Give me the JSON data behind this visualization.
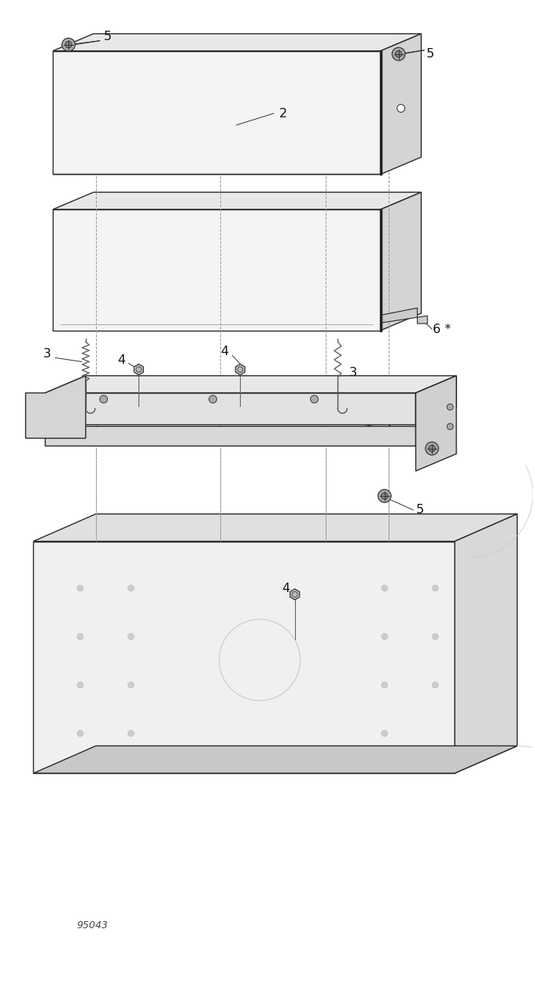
{
  "background_color": "#ffffff",
  "line_color": "#2a2a2a",
  "fig_id": "95043",
  "lw_main": 1.0,
  "lw_thin": 0.6,
  "lw_thick": 2.2,
  "face_top": "#e8e8e8",
  "face_front": "#f4f4f4",
  "face_right": "#d4d4d4",
  "face_dark": "#c0c0c0",
  "machine_front": "#f0f0f0",
  "machine_right": "#d8d8d8",
  "machine_top": "#e0e0e0"
}
